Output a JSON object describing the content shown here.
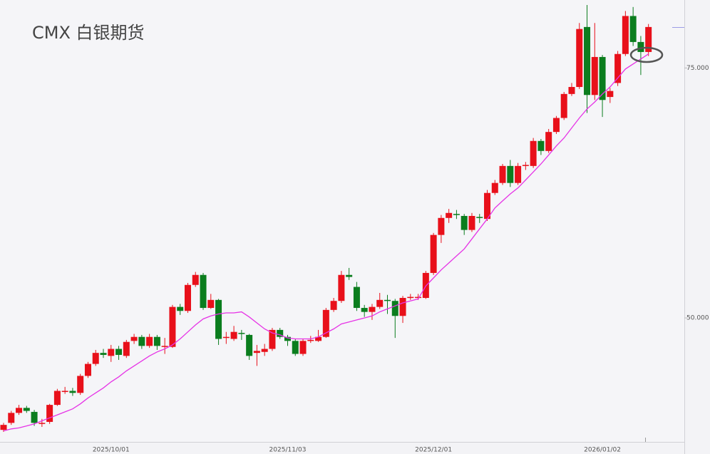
{
  "chart_data": {
    "type": "candlestick",
    "title": "CMX 白银期货",
    "categories": [
      null,
      null,
      null,
      null,
      null,
      null,
      null,
      null,
      null,
      null,
      null,
      null,
      null,
      null,
      "2025/10/01",
      null,
      null,
      null,
      null,
      null,
      null,
      null,
      null,
      null,
      null,
      null,
      null,
      null,
      null,
      null,
      null,
      null,
      null,
      null,
      null,
      null,
      null,
      "2025/11/03",
      null,
      null,
      null,
      null,
      null,
      null,
      null,
      null,
      null,
      null,
      null,
      null,
      null,
      null,
      null,
      null,
      null,
      null,
      "2025/12/01",
      null,
      null,
      null,
      null,
      null,
      null,
      null,
      null,
      null,
      null,
      null,
      null,
      null,
      null,
      null,
      null,
      null,
      null,
      null,
      null,
      null,
      "2026/01/02",
      null,
      null,
      null,
      null,
      null,
      null
    ],
    "open": [
      38.8,
      39.5,
      40.5,
      41.0,
      40.6,
      39.4,
      39.6,
      41.3,
      42.7,
      42.7,
      42.5,
      44.2,
      45.4,
      46.5,
      46.2,
      46.9,
      46.2,
      47.7,
      48.1,
      47.2,
      48.1,
      47.1,
      47.1,
      51.1,
      50.7,
      53.3,
      54.3,
      51.0,
      51.8,
      48.0,
      47.9,
      48.5,
      48.3,
      46.5,
      46.6,
      46.9,
      48.8,
      48.1,
      47.7,
      46.4,
      47.7,
      47.7,
      48.1,
      50.8,
      51.7,
      54.3,
      53.1,
      51.0,
      50.6,
      51.1,
      51.8,
      51.7,
      50.2,
      52.0,
      52.0,
      52.0,
      54.5,
      58.3,
      60.0,
      60.4,
      60.2,
      58.8,
      60.1,
      59.9,
      62.5,
      63.5,
      65.2,
      63.5,
      65.2,
      65.2,
      67.7,
      66.7,
      68.6,
      70.0,
      72.4,
      73.1,
      79.1,
      72.3,
      76.1,
      72.1,
      73.5,
      76.4,
      80.2,
      77.6,
      76.6
    ],
    "high": [
      39.5,
      40.7,
      41.3,
      41.2,
      40.8,
      39.9,
      41.4,
      42.9,
      43.1,
      43.0,
      44.4,
      45.6,
      46.8,
      46.9,
      47.3,
      47.2,
      47.8,
      48.4,
      48.3,
      48.4,
      48.3,
      48.0,
      51.3,
      51.4,
      53.5,
      54.6,
      54.5,
      52.4,
      51.9,
      48.6,
      49.2,
      48.8,
      48.4,
      47.3,
      47.4,
      49.0,
      49.0,
      48.3,
      47.9,
      47.9,
      48.2,
      48.8,
      51.0,
      52.0,
      54.7,
      55.0,
      53.6,
      51.3,
      51.4,
      52.5,
      52.3,
      51.9,
      52.2,
      52.4,
      52.4,
      54.7,
      58.5,
      60.3,
      60.9,
      60.8,
      60.4,
      60.5,
      60.4,
      62.8,
      63.8,
      65.4,
      65.8,
      65.5,
      65.6,
      68.0,
      67.9,
      68.9,
      70.2,
      72.6,
      73.5,
      79.5,
      81.3,
      79.5,
      76.3,
      73.0,
      76.7,
      80.7,
      81.1,
      78.2,
      79.4
    ],
    "low": [
      38.6,
      39.3,
      40.3,
      40.5,
      39.2,
      39.1,
      39.4,
      41.2,
      42.4,
      42.2,
      42.3,
      44.0,
      45.2,
      46.0,
      45.6,
      45.8,
      46.0,
      47.4,
      46.9,
      47.0,
      46.8,
      46.4,
      47.0,
      50.3,
      50.5,
      53.1,
      50.8,
      50.9,
      47.3,
      47.4,
      47.7,
      47.8,
      45.8,
      45.2,
      46.2,
      46.7,
      47.9,
      47.2,
      46.2,
      46.2,
      47.5,
      47.6,
      48.0,
      50.6,
      51.5,
      53.8,
      50.7,
      50.1,
      49.8,
      50.9,
      50.4,
      48.0,
      49.5,
      51.8,
      51.8,
      51.9,
      54.3,
      57.5,
      59.5,
      59.9,
      58.3,
      58.6,
      59.5,
      59.7,
      62.3,
      63.3,
      63.1,
      63.3,
      64.8,
      65.0,
      66.3,
      66.5,
      68.4,
      69.8,
      72.2,
      72.9,
      70.5,
      71.8,
      70.1,
      71.5,
      73.2,
      76.2,
      77.2,
      74.3,
      76.2
    ],
    "close": [
      39.3,
      40.5,
      41.0,
      40.7,
      39.5,
      39.5,
      41.3,
      42.7,
      42.7,
      42.5,
      44.2,
      45.4,
      46.5,
      46.3,
      46.9,
      46.3,
      47.6,
      48.1,
      47.2,
      48.1,
      47.2,
      47.2,
      51.1,
      50.7,
      53.3,
      54.3,
      51.0,
      51.8,
      47.9,
      48.1,
      48.6,
      48.4,
      46.2,
      46.7,
      46.9,
      48.8,
      48.1,
      47.7,
      46.4,
      47.7,
      47.8,
      48.1,
      50.8,
      51.7,
      54.3,
      54.1,
      51.0,
      50.6,
      51.1,
      51.8,
      51.7,
      50.2,
      52.0,
      52.1,
      52.1,
      54.5,
      58.3,
      60.0,
      60.5,
      60.3,
      58.8,
      60.2,
      60.0,
      62.5,
      63.5,
      65.2,
      63.5,
      65.2,
      65.3,
      67.7,
      66.7,
      68.6,
      70.0,
      72.4,
      73.1,
      78.9,
      72.3,
      76.1,
      71.8,
      72.7,
      76.4,
      80.2,
      77.6,
      76.6,
      79.1
    ],
    "ma": [
      38.7,
      38.9,
      39.0,
      39.2,
      39.4,
      39.7,
      40.0,
      40.3,
      40.6,
      40.9,
      41.4,
      42.0,
      42.5,
      43.0,
      43.6,
      44.1,
      44.7,
      45.2,
      45.7,
      46.2,
      46.6,
      46.9,
      47.3,
      47.9,
      48.6,
      49.3,
      49.9,
      50.2,
      50.4,
      50.5,
      50.5,
      50.6,
      50.1,
      49.5,
      48.9,
      48.5,
      48.3,
      48.0,
      47.9,
      47.9,
      47.9,
      48.1,
      48.5,
      48.9,
      49.4,
      49.6,
      49.8,
      50.0,
      50.2,
      50.6,
      50.9,
      51.2,
      51.5,
      51.7,
      51.9,
      53.2,
      54.0,
      54.8,
      55.5,
      56.2,
      56.9,
      57.9,
      58.9,
      59.9,
      61.0,
      61.7,
      62.4,
      63.0,
      63.8,
      64.6,
      65.4,
      66.3,
      67.2,
      68.0,
      69.0,
      70.0,
      70.9,
      71.6,
      72.4,
      73.1,
      74.0,
      74.9,
      75.4,
      75.9,
      76.4
    ],
    "up_color": "#e8101a",
    "down_color": "#0b7d1e",
    "ma_color": "#e633e6",
    "ylim": [
      37.6,
      81.8
    ],
    "yticks": [
      {
        "value": 50,
        "label": "50.000"
      },
      {
        "value": 75,
        "label": "75.000"
      }
    ]
  }
}
